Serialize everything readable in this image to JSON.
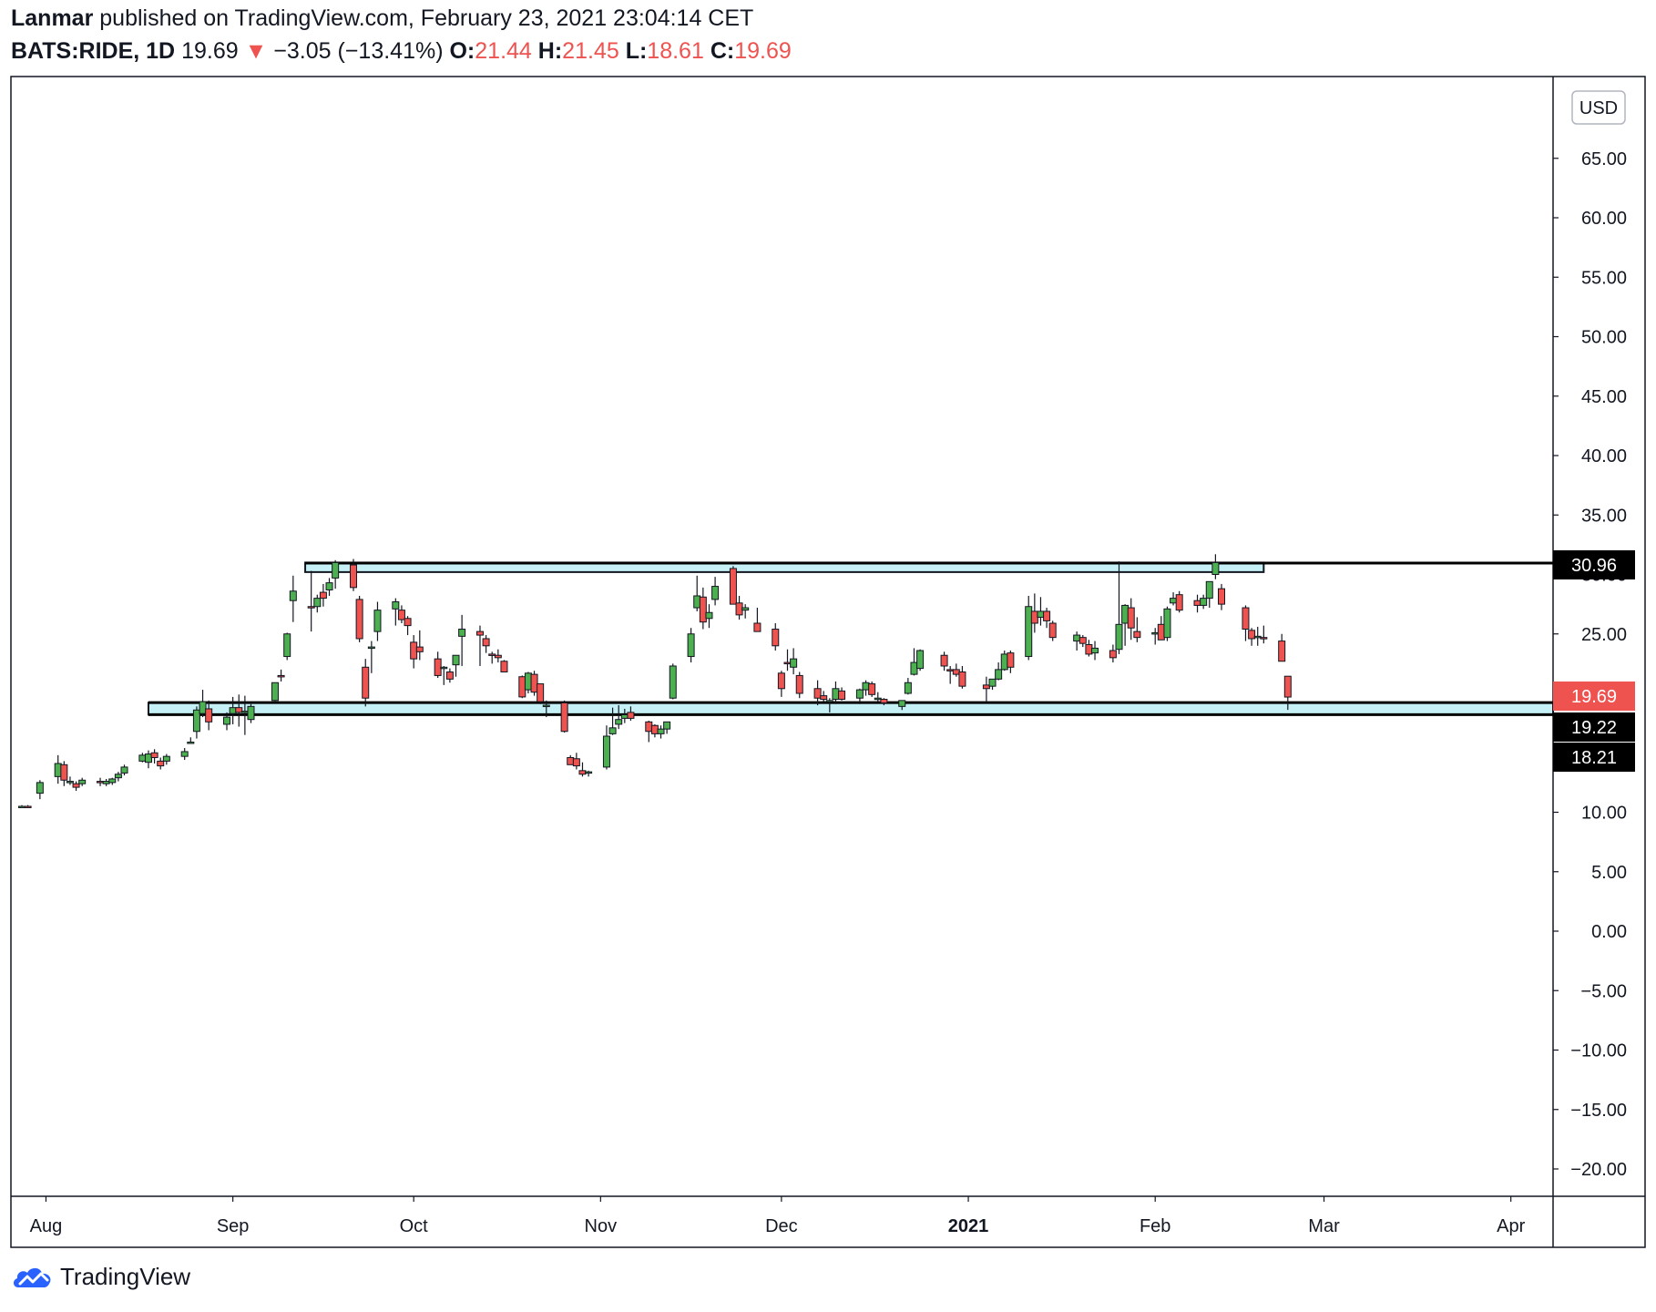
{
  "header": {
    "author": "Lanmar",
    "published_text": "published on TradingView.com, February 23, 2021 23:04:14 CET",
    "symbol": "BATS:RIDE, 1D",
    "last_price": "19.69",
    "change_arrow": "▼",
    "change": "−3.05 (−13.41%)",
    "open_label": "O:",
    "open_value": "21.44",
    "high_label": "H:",
    "high_value": "21.45",
    "low_label": "L:",
    "low_value": "18.61",
    "close_label": "C:",
    "close_value": "19.69"
  },
  "currency_button": "USD",
  "footer": {
    "brand": "TradingView"
  },
  "colors": {
    "up": "#26a69a",
    "candle_up": "#4caf50",
    "down": "#ef5350",
    "zone_fill": "#b2ebf2",
    "price_tag_red": "#ef5350",
    "price_tag_black": "#000000"
  },
  "chart_data": {
    "type": "candlestick",
    "symbol": "BATS:RIDE",
    "interval": "1D",
    "currency": "USD",
    "ylim": [
      -22.5,
      70
    ],
    "y_ticks": [
      "65.00",
      "60.00",
      "55.00",
      "50.00",
      "45.00",
      "40.00",
      "35.00",
      "30.00",
      "25.00",
      "20.00",
      "15.00",
      "10.00",
      "5.00",
      "0.00",
      "−5.00",
      "−10.00",
      "−15.00",
      "−20.00"
    ],
    "x_ticks": [
      {
        "label": "Aug",
        "date": "2020-08-01",
        "bold": false
      },
      {
        "label": "Sep",
        "date": "2020-09-01",
        "bold": false
      },
      {
        "label": "Oct",
        "date": "2020-10-01",
        "bold": false
      },
      {
        "label": "Nov",
        "date": "2020-11-01",
        "bold": false
      },
      {
        "label": "Dec",
        "date": "2020-12-01",
        "bold": false
      },
      {
        "label": "2021",
        "date": "2021-01-01",
        "bold": true
      },
      {
        "label": "Feb",
        "date": "2021-02-01",
        "bold": false
      },
      {
        "label": "Mar",
        "date": "2021-03-01",
        "bold": false
      },
      {
        "label": "Apr",
        "date": "2021-04-01",
        "bold": false
      }
    ],
    "x_range": [
      "2020-07-28",
      "2021-04-08"
    ],
    "price_labels": [
      {
        "value": "30.96",
        "kind": "black"
      },
      {
        "value": "19.69",
        "kind": "red"
      },
      {
        "value": "19.22",
        "kind": "black"
      },
      {
        "value": "18.21",
        "kind": "black"
      }
    ],
    "zones": [
      {
        "from_date": "2020-09-13",
        "to_date": "2021-02-19",
        "low": 30.2,
        "high": 31.0,
        "top_line": 30.96,
        "line_to": "2021-02-19"
      },
      {
        "from_date": "2020-08-18",
        "to_date": "2021-04-08",
        "low": 18.21,
        "high": 19.22
      }
    ],
    "candles": [
      [
        "2020-07-28",
        10.5,
        10.6,
        10.4,
        10.5
      ],
      [
        "2020-07-29",
        10.5,
        10.6,
        10.4,
        10.4
      ],
      [
        "2020-07-31",
        11.6,
        12.7,
        11.1,
        12.5
      ],
      [
        "2020-08-03",
        13.0,
        14.8,
        12.4,
        14.1
      ],
      [
        "2020-08-04",
        14.0,
        14.3,
        12.2,
        12.7
      ],
      [
        "2020-08-05",
        12.6,
        13.0,
        12.3,
        12.6
      ],
      [
        "2020-08-06",
        12.4,
        12.6,
        11.8,
        12.1
      ],
      [
        "2020-08-07",
        12.4,
        12.9,
        12.2,
        12.7
      ],
      [
        "2020-08-10",
        12.6,
        12.9,
        12.2,
        12.5
      ],
      [
        "2020-08-11",
        12.4,
        12.8,
        12.2,
        12.6
      ],
      [
        "2020-08-12",
        12.5,
        12.9,
        12.3,
        12.8
      ],
      [
        "2020-08-13",
        12.9,
        13.4,
        12.6,
        13.2
      ],
      [
        "2020-08-14",
        13.3,
        14.0,
        13.1,
        13.8
      ],
      [
        "2020-08-17",
        14.3,
        15.0,
        14.2,
        14.8
      ],
      [
        "2020-08-18",
        14.2,
        15.2,
        13.7,
        14.9
      ],
      [
        "2020-08-19",
        15.0,
        15.3,
        14.1,
        14.6
      ],
      [
        "2020-08-20",
        14.3,
        14.6,
        13.6,
        13.9
      ],
      [
        "2020-08-21",
        14.3,
        14.9,
        14.0,
        14.7
      ],
      [
        "2020-08-24",
        14.7,
        15.4,
        14.4,
        15.1
      ],
      [
        "2020-08-25",
        15.9,
        16.3,
        15.8,
        15.9
      ],
      [
        "2020-08-26",
        16.8,
        18.9,
        16.2,
        18.6
      ],
      [
        "2020-08-27",
        18.3,
        20.3,
        18.0,
        19.3
      ],
      [
        "2020-08-28",
        18.7,
        19.4,
        16.9,
        17.6
      ],
      [
        "2020-08-31",
        17.4,
        18.4,
        16.9,
        18.0
      ],
      [
        "2020-09-01",
        18.3,
        19.7,
        17.4,
        18.8
      ],
      [
        "2020-09-02",
        18.8,
        19.9,
        17.2,
        18.4
      ],
      [
        "2020-09-03",
        18.4,
        19.8,
        16.5,
        18.5
      ],
      [
        "2020-09-04",
        17.8,
        19.1,
        17.5,
        18.9
      ],
      [
        "2020-09-08",
        19.4,
        20.3,
        19.2,
        20.9
      ],
      [
        "2020-09-09",
        21.5,
        22.0,
        21.0,
        21.4
      ],
      [
        "2020-09-10",
        23.1,
        25.1,
        22.8,
        25.0
      ],
      [
        "2020-09-11",
        27.8,
        29.9,
        26.0,
        28.6
      ],
      [
        "2020-09-14",
        27.3,
        30.3,
        25.2,
        27.2
      ],
      [
        "2020-09-15",
        27.3,
        28.3,
        26.8,
        28.0
      ],
      [
        "2020-09-16",
        28.5,
        29.2,
        27.3,
        28.0
      ],
      [
        "2020-09-17",
        28.7,
        29.7,
        28.2,
        29.3
      ],
      [
        "2020-09-18",
        29.7,
        31.2,
        28.8,
        31.0
      ],
      [
        "2020-09-21",
        30.8,
        31.3,
        28.6,
        28.9
      ],
      [
        "2020-09-22",
        27.9,
        28.2,
        24.3,
        24.6
      ],
      [
        "2020-09-23",
        22.2,
        22.9,
        18.9,
        19.6
      ],
      [
        "2020-09-24",
        23.8,
        24.4,
        21.7,
        23.9
      ],
      [
        "2020-09-25",
        25.2,
        27.7,
        24.4,
        27.0
      ],
      [
        "2020-09-28",
        27.1,
        28.0,
        25.7,
        27.7
      ],
      [
        "2020-09-29",
        27.0,
        27.4,
        25.9,
        26.2
      ],
      [
        "2020-09-30",
        26.3,
        26.5,
        24.9,
        25.7
      ],
      [
        "2020-10-01",
        24.3,
        24.9,
        22.1,
        22.9
      ],
      [
        "2020-10-02",
        23.9,
        25.3,
        22.8,
        23.5
      ],
      [
        "2020-10-05",
        22.9,
        23.5,
        21.3,
        21.5
      ],
      [
        "2020-10-06",
        22.2,
        22.3,
        20.7,
        22.2
      ],
      [
        "2020-10-07",
        21.8,
        22.1,
        20.9,
        21.2
      ],
      [
        "2020-10-08",
        22.4,
        23.2,
        21.4,
        23.2
      ],
      [
        "2020-10-09",
        24.8,
        26.6,
        22.3,
        25.4
      ],
      [
        "2020-10-12",
        25.2,
        25.7,
        22.3,
        24.9
      ],
      [
        "2020-10-13",
        24.6,
        24.9,
        23.4,
        24.0
      ],
      [
        "2020-10-14",
        23.3,
        23.5,
        22.5,
        23.2
      ],
      [
        "2020-10-15",
        23.2,
        23.7,
        22.6,
        23.0
      ],
      [
        "2020-10-16",
        22.7,
        22.8,
        21.9,
        21.8
      ],
      [
        "2020-10-19",
        21.4,
        21.5,
        19.6,
        19.7
      ],
      [
        "2020-10-20",
        20.3,
        21.8,
        20.0,
        21.7
      ],
      [
        "2020-10-21",
        21.6,
        21.9,
        19.8,
        20.1
      ],
      [
        "2020-10-22",
        20.8,
        20.8,
        19.1,
        19.3
      ],
      [
        "2020-10-23",
        19.0,
        19.4,
        18.0,
        19.0
      ],
      [
        "2020-10-26",
        19.2,
        19.4,
        16.7,
        16.8
      ],
      [
        "2020-10-27",
        14.6,
        14.8,
        14.0,
        14.0
      ],
      [
        "2020-10-28",
        14.5,
        15.0,
        13.6,
        13.9
      ],
      [
        "2020-10-29",
        13.5,
        14.2,
        13.0,
        13.2
      ],
      [
        "2020-10-30",
        13.3,
        13.5,
        13.0,
        13.4
      ],
      [
        "2020-11-02",
        13.8,
        17.3,
        13.6,
        16.4
      ],
      [
        "2020-11-03",
        16.6,
        18.8,
        16.5,
        17.1
      ],
      [
        "2020-11-04",
        17.4,
        19.0,
        17.0,
        17.8
      ],
      [
        "2020-11-05",
        17.9,
        18.7,
        17.5,
        18.2
      ],
      [
        "2020-11-06",
        18.4,
        18.9,
        17.7,
        17.9
      ],
      [
        "2020-11-09",
        17.6,
        17.7,
        15.9,
        16.8
      ],
      [
        "2020-11-10",
        17.3,
        17.4,
        16.3,
        16.6
      ],
      [
        "2020-11-11",
        16.6,
        17.3,
        16.2,
        17.0
      ],
      [
        "2020-11-12",
        17.0,
        17.6,
        16.6,
        17.6
      ],
      [
        "2020-11-13",
        19.6,
        22.5,
        19.5,
        22.3
      ],
      [
        "2020-11-16",
        23.1,
        25.5,
        22.6,
        25.0
      ],
      [
        "2020-11-17",
        27.2,
        29.9,
        26.9,
        28.2
      ],
      [
        "2020-11-18",
        28.1,
        28.9,
        25.4,
        26.0
      ],
      [
        "2020-11-19",
        26.3,
        27.5,
        25.5,
        26.8
      ],
      [
        "2020-11-20",
        27.9,
        29.8,
        27.4,
        29.0
      ],
      [
        "2020-11-23",
        30.5,
        30.7,
        27.6,
        27.5
      ],
      [
        "2020-11-24",
        27.6,
        28.2,
        26.2,
        26.6
      ],
      [
        "2020-11-25",
        27.0,
        27.5,
        26.3,
        27.2
      ],
      [
        "2020-11-27",
        25.9,
        27.2,
        25.2,
        25.2
      ],
      [
        "2020-11-30",
        25.4,
        25.9,
        23.6,
        24.0
      ],
      [
        "2020-12-01",
        21.7,
        21.9,
        19.7,
        20.4
      ],
      [
        "2020-12-02",
        22.6,
        23.7,
        21.9,
        22.5
      ],
      [
        "2020-12-03",
        22.2,
        23.8,
        21.6,
        22.9
      ],
      [
        "2020-12-04",
        21.5,
        21.8,
        19.6,
        20.0
      ],
      [
        "2020-12-07",
        20.4,
        21.1,
        19.0,
        19.6
      ],
      [
        "2020-12-08",
        19.8,
        20.2,
        19.3,
        19.5
      ],
      [
        "2020-12-09",
        19.4,
        19.6,
        18.4,
        19.4
      ],
      [
        "2020-12-10",
        19.5,
        21.0,
        19.1,
        20.4
      ],
      [
        "2020-12-11",
        20.2,
        20.5,
        19.4,
        19.5
      ],
      [
        "2020-12-14",
        19.6,
        20.4,
        19.1,
        20.3
      ],
      [
        "2020-12-15",
        20.3,
        21.1,
        19.8,
        20.9
      ],
      [
        "2020-12-16",
        20.8,
        21.0,
        19.7,
        19.9
      ],
      [
        "2020-12-17",
        19.6,
        20.1,
        19.3,
        19.6
      ],
      [
        "2020-12-18",
        19.5,
        19.6,
        19.0,
        19.2
      ],
      [
        "2020-12-21",
        18.9,
        19.4,
        18.6,
        19.4
      ],
      [
        "2020-12-22",
        20.0,
        21.3,
        19.9,
        20.9
      ],
      [
        "2020-12-23",
        21.6,
        23.8,
        21.5,
        22.6
      ],
      [
        "2020-12-24",
        22.1,
        23.7,
        21.9,
        23.6
      ],
      [
        "2020-12-28",
        23.2,
        23.5,
        21.9,
        22.3
      ],
      [
        "2020-12-29",
        22.0,
        22.3,
        20.8,
        21.9
      ],
      [
        "2020-12-30",
        22.0,
        22.5,
        21.4,
        21.6
      ],
      [
        "2020-12-31",
        21.8,
        22.3,
        20.4,
        20.6
      ],
      [
        "2021-01-04",
        20.7,
        21.4,
        19.2,
        20.4
      ],
      [
        "2021-01-05",
        20.6,
        21.2,
        20.3,
        21.2
      ],
      [
        "2021-01-06",
        21.2,
        22.6,
        21.1,
        22.0
      ],
      [
        "2021-01-07",
        22.0,
        23.6,
        21.9,
        23.3
      ],
      [
        "2021-01-08",
        23.4,
        23.6,
        21.7,
        22.2
      ],
      [
        "2021-01-11",
        23.1,
        28.2,
        22.8,
        27.3
      ],
      [
        "2021-01-12",
        26.9,
        28.4,
        25.1,
        25.9
      ],
      [
        "2021-01-13",
        26.4,
        28.1,
        25.7,
        26.9
      ],
      [
        "2021-01-14",
        26.9,
        27.2,
        25.5,
        26.1
      ],
      [
        "2021-01-15",
        25.9,
        26.1,
        24.4,
        24.7
      ],
      [
        "2021-01-19",
        24.4,
        25.2,
        23.6,
        24.9
      ],
      [
        "2021-01-20",
        24.7,
        24.9,
        23.9,
        24.2
      ],
      [
        "2021-01-21",
        24.1,
        24.5,
        23.1,
        23.3
      ],
      [
        "2021-01-22",
        23.4,
        24.4,
        22.8,
        23.8
      ],
      [
        "2021-01-25",
        23.6,
        24.1,
        22.6,
        23.0
      ],
      [
        "2021-01-26",
        23.7,
        31.1,
        23.3,
        25.8
      ],
      [
        "2021-01-27",
        25.9,
        27.5,
        24.0,
        27.4
      ],
      [
        "2021-01-28",
        27.2,
        28.0,
        24.5,
        25.5
      ],
      [
        "2021-01-29",
        25.2,
        26.4,
        24.3,
        24.7
      ],
      [
        "2021-02-01",
        25.0,
        25.5,
        24.1,
        25.1
      ],
      [
        "2021-02-02",
        25.8,
        26.5,
        24.9,
        24.5
      ],
      [
        "2021-02-03",
        24.7,
        27.3,
        24.4,
        27.1
      ],
      [
        "2021-02-04",
        27.6,
        28.5,
        27.4,
        28.0
      ],
      [
        "2021-02-05",
        28.3,
        28.6,
        26.8,
        27.0
      ],
      [
        "2021-02-08",
        27.8,
        28.3,
        26.8,
        27.4
      ],
      [
        "2021-02-09",
        27.4,
        28.3,
        27.1,
        28.0
      ],
      [
        "2021-02-10",
        28.0,
        29.4,
        27.2,
        29.4
      ],
      [
        "2021-02-11",
        30.0,
        31.7,
        29.6,
        31.0
      ],
      [
        "2021-02-12",
        28.8,
        29.2,
        27.0,
        27.5
      ],
      [
        "2021-02-16",
        27.2,
        27.4,
        24.4,
        25.4
      ],
      [
        "2021-02-17",
        25.3,
        25.5,
        24.0,
        24.6
      ],
      [
        "2021-02-18",
        24.8,
        25.6,
        24.0,
        24.8
      ],
      [
        "2021-02-19",
        24.7,
        25.7,
        24.2,
        24.6
      ],
      [
        "2021-02-22",
        24.4,
        25.0,
        22.7,
        22.7
      ],
      [
        "2021-02-23",
        21.44,
        21.45,
        18.61,
        19.69
      ]
    ]
  }
}
